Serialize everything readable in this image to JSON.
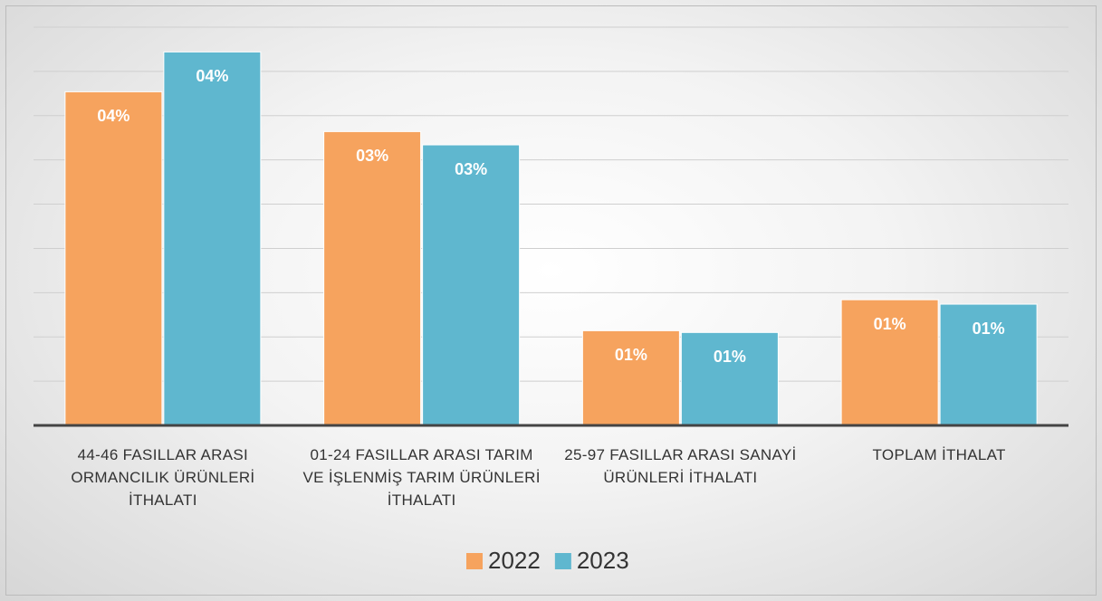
{
  "chart_data": {
    "type": "bar",
    "categories": [
      "44-46 FASILLAR ARASI ORMANCILIK ÜRÜNLERİ İTHALATI",
      "01-24 FASILLAR ARASI TARIM VE İŞLENMİŞ TARIM ÜRÜNLERİ İTHALATI",
      "25-97 FASILLAR ARASI SANAYİ ÜRÜNLERİ İTHALATI",
      "TOPLAM İTHALAT"
    ],
    "series": [
      {
        "name": "2022",
        "color": "#f6a35e",
        "values": [
          3.77,
          3.32,
          1.07,
          1.42
        ],
        "value_labels": [
          "04%",
          "03%",
          "01%",
          "01%"
        ]
      },
      {
        "name": "2023",
        "color": "#5fb7cf",
        "values": [
          4.22,
          3.17,
          1.05,
          1.37
        ],
        "value_labels": [
          "04%",
          "03%",
          "01%",
          "01%"
        ]
      }
    ],
    "ylim": [
      0,
      4.5
    ],
    "yticks": [
      0.5,
      1,
      1.5,
      2,
      2.5,
      3,
      3.5,
      4,
      4.5
    ],
    "grid": true,
    "legend": "bottom"
  }
}
